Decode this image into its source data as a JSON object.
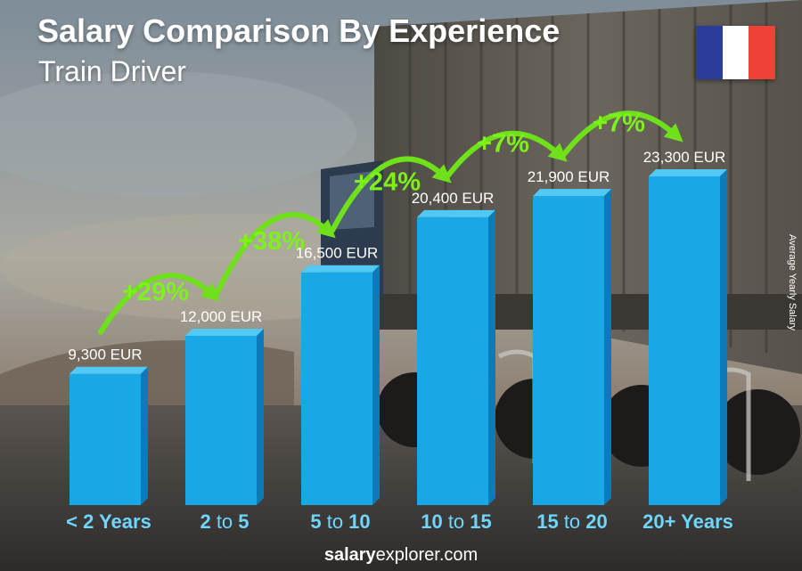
{
  "header": {
    "title": "Salary Comparison By Experience",
    "subtitle": "Train Driver"
  },
  "side_label": "Average Yearly Salary",
  "footer": {
    "brand": "salary",
    "rest": "explorer.com"
  },
  "flag": {
    "colors": [
      "#2a3d9b",
      "#ffffff",
      "#ef4135"
    ]
  },
  "colors": {
    "bar": "#1aa7e6",
    "bar_top": "#52c8f5",
    "bar_side": "#0b7cb8",
    "pct": "#7df21a",
    "label": "#ffffff",
    "tick": "#6fd6ff"
  },
  "chart_data": {
    "type": "bar",
    "title": "Salary Comparison By Experience",
    "subtitle": "Train Driver",
    "ylabel": "Average Yearly Salary",
    "unit": "EUR",
    "categories": [
      [
        {
          "t": "< 2 Years",
          "b": true
        }
      ],
      [
        {
          "t": "2",
          "b": true
        },
        {
          "t": " to ",
          "b": false
        },
        {
          "t": "5",
          "b": true
        }
      ],
      [
        {
          "t": "5",
          "b": true
        },
        {
          "t": " to ",
          "b": false
        },
        {
          "t": "10",
          "b": true
        }
      ],
      [
        {
          "t": "10",
          "b": true
        },
        {
          "t": " to ",
          "b": false
        },
        {
          "t": "15",
          "b": true
        }
      ],
      [
        {
          "t": "15",
          "b": true
        },
        {
          "t": " to ",
          "b": false
        },
        {
          "t": "20",
          "b": true
        }
      ],
      [
        {
          "t": "20+ Years",
          "b": true
        }
      ]
    ],
    "values": [
      9300,
      12000,
      16500,
      20400,
      21900,
      23300
    ],
    "value_labels": [
      "9,300 EUR",
      "12,000 EUR",
      "16,500 EUR",
      "20,400 EUR",
      "21,900 EUR",
      "23,300 EUR"
    ],
    "increases": [
      "+29%",
      "+38%",
      "+24%",
      "+7%",
      "+7%"
    ],
    "ylim": [
      0,
      30000
    ]
  }
}
